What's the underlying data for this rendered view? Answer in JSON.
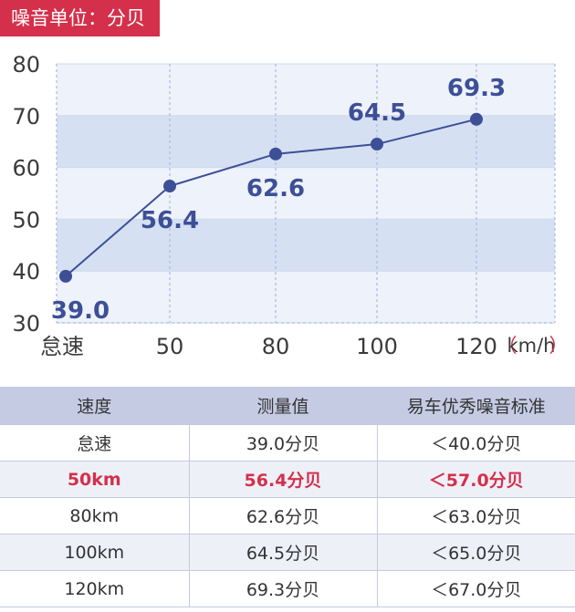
{
  "unit_badge": "噪音单位：分贝",
  "chart_data": {
    "type": "line",
    "title": "",
    "categories": [
      "怠速",
      "50",
      "80",
      "100",
      "120"
    ],
    "x_unit_paren_open": "（",
    "x_unit": "km/h",
    "x_unit_paren_close": "）",
    "values": [
      39.0,
      56.4,
      62.6,
      64.5,
      69.3
    ],
    "value_labels": [
      "39.0",
      "56.4",
      "62.6",
      "64.5",
      "69.3"
    ],
    "yticks": [
      "30",
      "40",
      "50",
      "60",
      "70",
      "80"
    ],
    "ylim": [
      30,
      80
    ],
    "shaded_bands": [
      [
        40,
        50
      ],
      [
        60,
        70
      ]
    ],
    "grid": true,
    "colors": {
      "line": "#3d4f97",
      "band": "#d5e1f3",
      "plot_bg": "#eef2fa"
    }
  },
  "table": {
    "headers": [
      "速度",
      "测量值",
      "易车优秀噪音标准"
    ],
    "rows": [
      [
        "怠速",
        "39.0分贝",
        "＜40.0分贝"
      ],
      [
        "50km",
        "56.4分贝",
        "＜57.0分贝"
      ],
      [
        "80km",
        "62.6分贝",
        "＜63.0分贝"
      ],
      [
        "100km",
        "64.5分贝",
        "＜65.0分贝"
      ],
      [
        "120km",
        "69.3分贝",
        "＜67.0分贝"
      ]
    ],
    "highlight_row": 1
  },
  "colors": {
    "accent": "#d4304b",
    "header_bg": "#c4cbe3",
    "alt_row": "#eef0f8"
  }
}
